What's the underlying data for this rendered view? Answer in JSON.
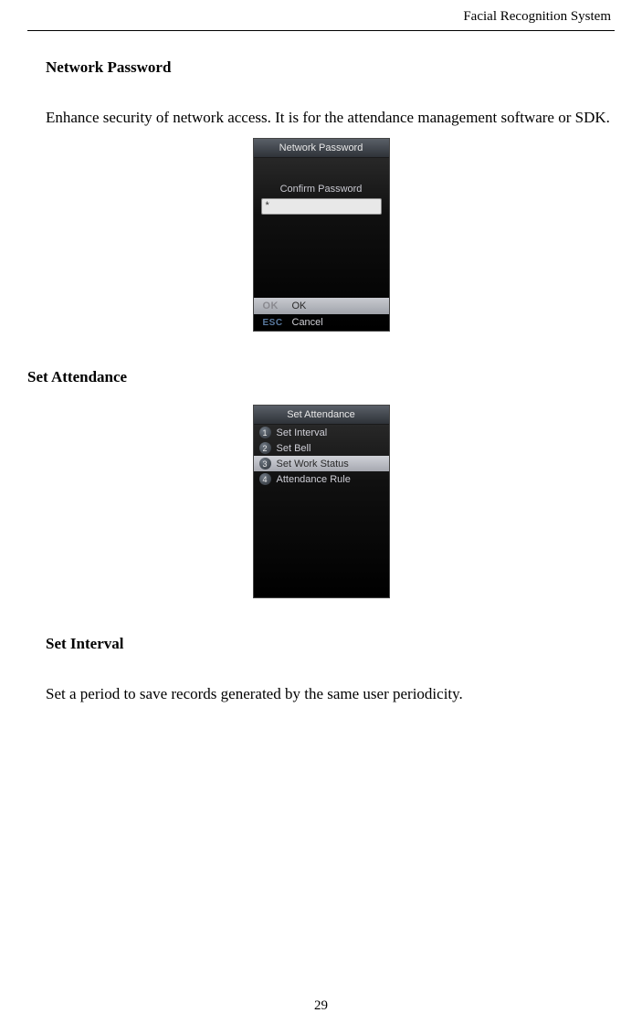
{
  "header": {
    "title": "Facial  Recognition  System"
  },
  "section1": {
    "title": "Network Password",
    "body": "Enhance security of network access. It is for the attendance management software or SDK."
  },
  "screen1": {
    "title": "Network Password",
    "confirm_label": "Confirm Password",
    "input_value": "*",
    "ok_key": "OK",
    "ok_label": "OK",
    "esc_key": "ESC",
    "esc_label": "Cancel"
  },
  "section2": {
    "title": "Set Attendance"
  },
  "screen2": {
    "title": "Set Attendance",
    "items": [
      {
        "num": "1",
        "label": "Set Interval"
      },
      {
        "num": "2",
        "label": "Set Bell"
      },
      {
        "num": "3",
        "label": "Set Work Status"
      },
      {
        "num": "4",
        "label": "Attendance Rule"
      }
    ],
    "selected_index": 2
  },
  "section3": {
    "title": "Set Interval",
    "body": "Set a period to save records generated by the same user periodicity."
  },
  "page_number": "29"
}
